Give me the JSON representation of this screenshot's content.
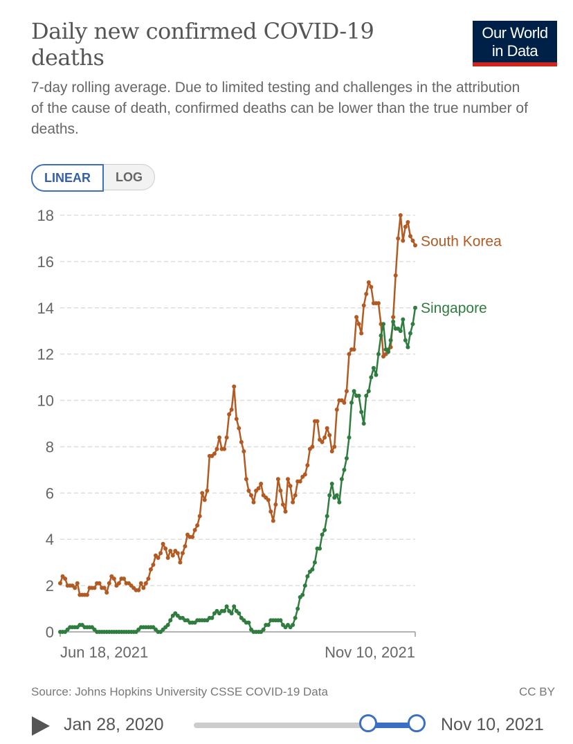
{
  "header": {
    "title": "Daily new confirmed COVID-19 deaths",
    "subtitle": "7-day rolling average. Due to limited testing and challenges in the attribution of the cause of death, confirmed deaths can be lower than the true number of deaths.",
    "logo_line1": "Our World",
    "logo_line2": "in Data"
  },
  "controls": {
    "linear": "LINEAR",
    "log": "LOG"
  },
  "footer": {
    "source": "Source: Johns Hopkins University CSSE COVID-19 Data",
    "license": "CC BY"
  },
  "timeline": {
    "start": "Jan 28, 2020",
    "end": "Nov 10, 2021"
  },
  "chart_data": {
    "type": "line",
    "x_start": "2021-06-18",
    "x_end": "2021-11-10",
    "x_tick_labels": [
      "Jun 18, 2021",
      "Nov 10, 2021"
    ],
    "y_ticks": [
      0,
      2,
      4,
      6,
      8,
      10,
      12,
      14,
      16,
      18
    ],
    "ylim": [
      0,
      18
    ],
    "grid": true,
    "series": [
      {
        "name": "South Korea",
        "color": "#b35a23",
        "values": [
          2.1,
          2.4,
          2.3,
          2.0,
          2.0,
          2.0,
          1.9,
          2.1,
          1.6,
          1.6,
          1.6,
          1.6,
          1.9,
          1.9,
          1.9,
          2.1,
          2.1,
          1.9,
          1.9,
          1.7,
          2.1,
          2.4,
          2.3,
          2.0,
          2.1,
          2.3,
          2.3,
          2.1,
          2.1,
          2.0,
          1.9,
          1.8,
          1.8,
          2.1,
          1.9,
          2.1,
          2.3,
          2.7,
          2.9,
          3.3,
          3.2,
          3.4,
          3.8,
          3.6,
          3.2,
          3.5,
          3.3,
          3.5,
          3.4,
          3.0,
          3.4,
          3.7,
          4.2,
          4.1,
          4.1,
          4.4,
          4.6,
          5.0,
          6.0,
          5.7,
          6.1,
          7.6,
          7.6,
          7.7,
          7.9,
          8.4,
          7.9,
          7.9,
          8.4,
          9.4,
          9.6,
          10.6,
          9.2,
          8.8,
          8.2,
          7.8,
          6.6,
          6.1,
          5.9,
          5.6,
          6.1,
          6.2,
          6.4,
          5.9,
          5.8,
          5.7,
          5.2,
          4.8,
          5.5,
          6.6,
          6.1,
          5.5,
          5.2,
          6.6,
          6.3,
          5.6,
          5.9,
          6.5,
          6.5,
          6.7,
          6.8,
          7.2,
          7.9,
          8.0,
          9.1,
          9.1,
          8.3,
          8.2,
          8.4,
          8.8,
          8.5,
          7.8,
          8.0,
          9.6,
          10.0,
          10.0,
          9.9,
          10.4,
          12.0,
          12.2,
          12.2,
          13.6,
          13.3,
          12.9,
          14.1,
          14.6,
          15.1,
          14.9,
          14.2,
          14.2,
          14.2,
          13.3,
          11.9,
          12.0,
          12.2,
          12.3,
          13.6,
          15.4,
          17.0,
          18.0,
          16.9,
          17.5,
          17.7,
          17.1,
          16.9,
          16.7
        ]
      },
      {
        "name": "Singapore",
        "color": "#2e7d3f",
        "values": [
          0,
          0,
          0,
          0.1,
          0.2,
          0.2,
          0.2,
          0.2,
          0.3,
          0.3,
          0.2,
          0.2,
          0.2,
          0.2,
          0.1,
          0,
          0,
          0,
          0,
          0,
          0,
          0,
          0,
          0,
          0,
          0,
          0,
          0,
          0,
          0,
          0,
          0,
          0.1,
          0.2,
          0.2,
          0.2,
          0.2,
          0.2,
          0.2,
          0.1,
          0,
          0,
          0.1,
          0.2,
          0.3,
          0.5,
          0.7,
          0.8,
          0.7,
          0.6,
          0.6,
          0.5,
          0.5,
          0.4,
          0.4,
          0.4,
          0.5,
          0.5,
          0.5,
          0.5,
          0.5,
          0.6,
          0.6,
          0.8,
          0.9,
          0.8,
          0.9,
          0.9,
          1.1,
          0.9,
          0.8,
          1.1,
          0.9,
          0.8,
          0.6,
          0.5,
          0.4,
          0.4,
          0.1,
          0,
          0,
          0,
          0,
          0.1,
          0.3,
          0.3,
          0.5,
          0.5,
          0.5,
          0.5,
          0.5,
          0.3,
          0.2,
          0.3,
          0.2,
          0.3,
          0.6,
          1.0,
          1.5,
          1.6,
          2.0,
          2.4,
          2.6,
          2.7,
          3.0,
          3.6,
          3.6,
          4.2,
          4.4,
          5.0,
          5.9,
          6.4,
          5.8,
          5.9,
          5.6,
          6.6,
          7.0,
          7.5,
          8.4,
          9.9,
          10.4,
          10.2,
          10.2,
          9.5,
          9.0,
          10.2,
          10.4,
          11.0,
          11.4,
          11.1,
          12.0,
          12.8,
          13.3,
          12.2,
          12.1,
          12.6,
          13.4,
          13.1,
          13.1,
          13.0,
          13.5,
          12.6,
          12.3,
          12.9,
          13.3,
          14.0
        ]
      }
    ]
  }
}
